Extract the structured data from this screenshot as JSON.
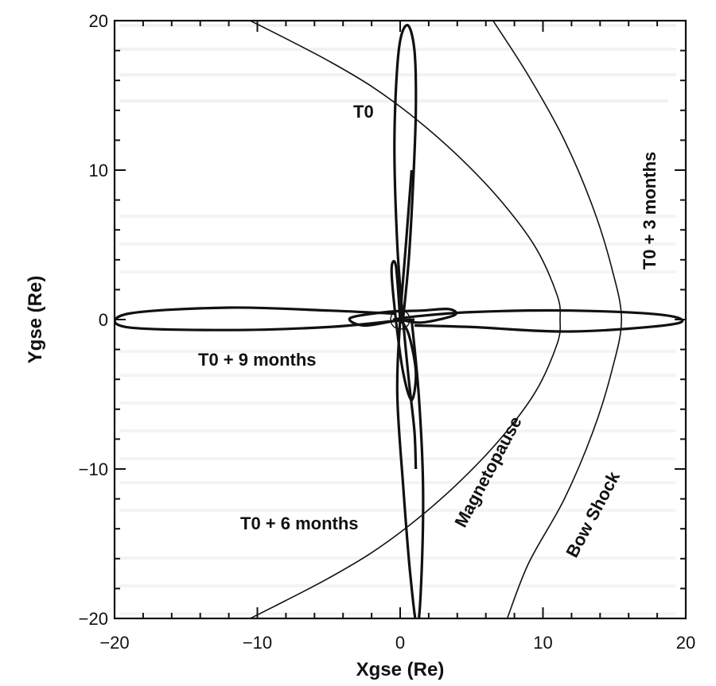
{
  "chart_data": {
    "type": "line",
    "title": "",
    "xlabel": "Xgse (Re)",
    "ylabel": "Ygse (Re)",
    "xlim": [
      -20,
      20
    ],
    "ylim": [
      -20,
      20
    ],
    "x_ticks": [
      -20,
      -10,
      0,
      10,
      20
    ],
    "y_ticks": [
      -20,
      -10,
      0,
      10,
      20
    ],
    "x_tick_labels": [
      "−20",
      "−10",
      "0",
      "10",
      "20"
    ],
    "y_tick_labels": [
      "−20",
      "−10",
      "0",
      "10",
      "20"
    ],
    "grid": false,
    "series": [
      {
        "name": "T0",
        "x": [
          0.2,
          0.6,
          0.9,
          1.1,
          1.0,
          0.5,
          -0.1,
          -0.4,
          -0.2,
          0.2,
          0.6,
          1.0,
          1.1
        ],
        "y": [
          0,
          4,
          9,
          14,
          18,
          19.7,
          18,
          12,
          5,
          0,
          -4,
          -7.5,
          -10
        ]
      },
      {
        "name": "T0 + 3 months",
        "x": [
          1.0,
          5,
          12,
          19.2,
          18.5,
          12,
          5,
          1.0,
          -0.5
        ],
        "y": [
          -0.4,
          -0.5,
          -0.8,
          -0.3,
          0.3,
          0.6,
          0.5,
          0.2,
          0
        ]
      },
      {
        "name": "T0 + 6 months",
        "x": [
          0.8,
          1.3,
          1.6,
          1.5,
          1.2,
          0.7,
          0.2,
          -0.2,
          0.0,
          0.4,
          0.8
        ],
        "y": [
          0,
          -5,
          -11,
          -17,
          -20.5,
          -17,
          -11,
          -5,
          0,
          5,
          10
        ]
      },
      {
        "name": "T0 + 9 months",
        "x": [
          -0.4,
          -5,
          -12,
          -19,
          -19.2,
          -12,
          -5,
          -0.4,
          1
        ],
        "y": [
          0.4,
          0.6,
          0.8,
          0.4,
          -0.5,
          -0.7,
          -0.5,
          -0.1,
          0
        ]
      },
      {
        "name": "",
        "x": [
          0,
          0.6,
          1.1,
          0.8,
          0.2,
          -0.3,
          -0.6,
          -0.3,
          0
        ],
        "y": [
          0,
          -1,
          -3.5,
          -5.4,
          -3.5,
          0,
          3.3,
          3.6,
          0
        ]
      },
      {
        "name": "",
        "x": [
          0,
          1.5,
          3.8,
          3.4,
          1.5,
          -1,
          -3.5,
          -2.5,
          0
        ],
        "y": [
          0,
          -0.2,
          0.3,
          0.7,
          0.6,
          0.5,
          0.1,
          -0.4,
          0
        ]
      },
      {
        "name": "Magnetopause",
        "x": [
          -10.5,
          -8,
          -5,
          -2,
          1,
          4,
          7,
          9.5,
          11,
          11.2,
          11,
          9.5,
          7,
          4,
          1,
          -2,
          -5,
          -8,
          -10.5
        ],
        "y": [
          20,
          18.8,
          17.3,
          15.6,
          13.5,
          11,
          8,
          4.8,
          1.6,
          0,
          -1.6,
          -4.8,
          -8,
          -11,
          -13.5,
          -15.6,
          -17.3,
          -18.8,
          -20
        ]
      },
      {
        "name": "Bow Shock",
        "x": [
          6.5,
          9,
          11.5,
          13.5,
          14.8,
          15.5,
          14.8,
          13.5,
          11.5,
          9,
          7.5
        ],
        "y": [
          20,
          16.3,
          12,
          7.5,
          3.5,
          0,
          -3.5,
          -7.5,
          -12,
          -16.3,
          -20
        ]
      }
    ],
    "annotations": [
      "T0",
      "T0 + 3 months",
      "T0 + 6 months",
      "T0 + 9 months",
      "Magnetopause",
      "Bow Shock"
    ]
  }
}
